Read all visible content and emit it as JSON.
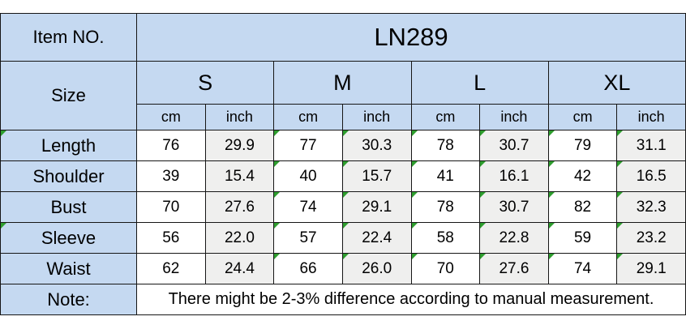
{
  "chart_data": {
    "type": "table",
    "title": "LN289",
    "columns": [
      "Size",
      "S cm",
      "S inch",
      "M cm",
      "M inch",
      "L cm",
      "L inch",
      "XL cm",
      "XL inch"
    ],
    "rows": [
      [
        "Length",
        76,
        29.9,
        77,
        30.3,
        78,
        30.7,
        79,
        31.1
      ],
      [
        "Shoulder",
        39,
        15.4,
        40,
        15.7,
        41,
        16.1,
        42,
        16.5
      ],
      [
        "Bust",
        70,
        27.6,
        74,
        29.1,
        78,
        30.7,
        82,
        32.3
      ],
      [
        "Sleeve",
        56,
        22.0,
        57,
        22.4,
        58,
        22.8,
        59,
        23.2
      ],
      [
        "Waist",
        62,
        24.4,
        66,
        26.0,
        70,
        27.6,
        74,
        29.1
      ]
    ],
    "note": "There might be 2-3% difference according to manual measurement."
  },
  "table": {
    "item_no_label": "Item NO.",
    "item_no_value": "LN289",
    "size_label": "Size",
    "sizes": [
      "S",
      "M",
      "L",
      "XL"
    ],
    "unit_headers": [
      "cm",
      "inch"
    ],
    "rows": [
      {
        "label": "Length",
        "label_marker": true,
        "values": [
          "76",
          "29.9",
          "77",
          "30.3",
          "78",
          "30.7",
          "79",
          "31.1"
        ],
        "markers": [
          0,
          0,
          1,
          1,
          1,
          1,
          1,
          1
        ]
      },
      {
        "label": "Shoulder",
        "label_marker": false,
        "values": [
          "39",
          "15.4",
          "40",
          "15.7",
          "41",
          "16.1",
          "42",
          "16.5"
        ],
        "markers": [
          0,
          0,
          1,
          1,
          1,
          1,
          1,
          1
        ]
      },
      {
        "label": "Bust",
        "label_marker": false,
        "values": [
          "70",
          "27.6",
          "74",
          "29.1",
          "78",
          "30.7",
          "82",
          "32.3"
        ],
        "markers": [
          0,
          0,
          1,
          1,
          1,
          1,
          1,
          1
        ]
      },
      {
        "label": "Sleeve",
        "label_marker": true,
        "values": [
          "56",
          "22.0",
          "57",
          "22.4",
          "58",
          "22.8",
          "59",
          "23.2"
        ],
        "markers": [
          0,
          0,
          1,
          1,
          1,
          1,
          1,
          1
        ]
      },
      {
        "label": "Waist",
        "label_marker": false,
        "values": [
          "62",
          "24.4",
          "66",
          "26.0",
          "70",
          "27.6",
          "74",
          "29.1"
        ],
        "markers": [
          0,
          0,
          1,
          1,
          1,
          1,
          1,
          1
        ]
      }
    ],
    "note_label": "Note:",
    "note_text": "There might be 2-3% difference according to manual measurement.",
    "colors": {
      "header_blue": "#c5d9f1",
      "alt_gray": "#efefee",
      "white": "#ffffff",
      "border": "#161616",
      "marker_green": "#2e9e2e"
    }
  }
}
